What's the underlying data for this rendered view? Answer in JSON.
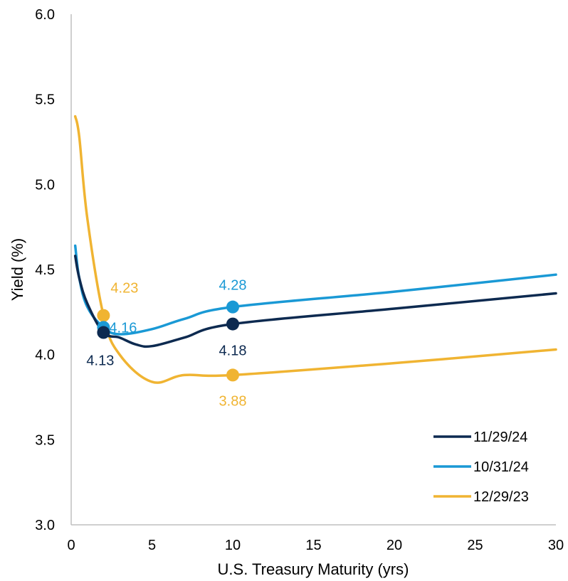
{
  "chart_data": {
    "type": "line",
    "title": "",
    "xlabel": "U.S. Treasury Maturity (yrs)",
    "ylabel": "Yield (%)",
    "xlim": [
      0,
      30
    ],
    "ylim": [
      3.0,
      6.0
    ],
    "x_ticks": [
      "0",
      "5",
      "10",
      "15",
      "20",
      "25",
      "30"
    ],
    "y_ticks": [
      "3.0",
      "3.5",
      "4.0",
      "4.5",
      "5.0",
      "5.5",
      "6.0"
    ],
    "grid": false,
    "legend_position": "bottom-right",
    "series": [
      {
        "name": "11/29/24",
        "color": "#0d2a50",
        "x": [
          0.25,
          0.5,
          1,
          2,
          3,
          4,
          5,
          7,
          10,
          20,
          30
        ],
        "y": [
          4.58,
          4.45,
          4.3,
          4.13,
          4.1,
          4.06,
          4.05,
          4.1,
          4.18,
          4.27,
          4.36
        ],
        "highlight": [
          {
            "x": 2,
            "y": 4.13,
            "label": "4.13"
          },
          {
            "x": 10,
            "y": 4.18,
            "label": "4.18"
          }
        ]
      },
      {
        "name": "10/31/24",
        "color": "#1a99d5",
        "x": [
          0.25,
          0.5,
          1,
          2,
          3,
          5,
          7,
          10,
          20,
          30
        ],
        "y": [
          4.64,
          4.45,
          4.28,
          4.16,
          4.12,
          4.15,
          4.21,
          4.28,
          4.37,
          4.47
        ],
        "highlight": [
          {
            "x": 2,
            "y": 4.16,
            "label": "4.16"
          },
          {
            "x": 10,
            "y": 4.28,
            "label": "4.28"
          }
        ]
      },
      {
        "name": "12/29/23",
        "color": "#f0b432",
        "x": [
          0.25,
          0.5,
          1,
          2,
          3,
          5,
          7,
          10,
          20,
          30
        ],
        "y": [
          5.4,
          5.28,
          4.8,
          4.23,
          4.0,
          3.84,
          3.88,
          3.88,
          3.95,
          4.03
        ],
        "highlight": [
          {
            "x": 2,
            "y": 4.23,
            "label": "4.23"
          },
          {
            "x": 10,
            "y": 3.88,
            "label": "3.88"
          }
        ]
      }
    ]
  }
}
